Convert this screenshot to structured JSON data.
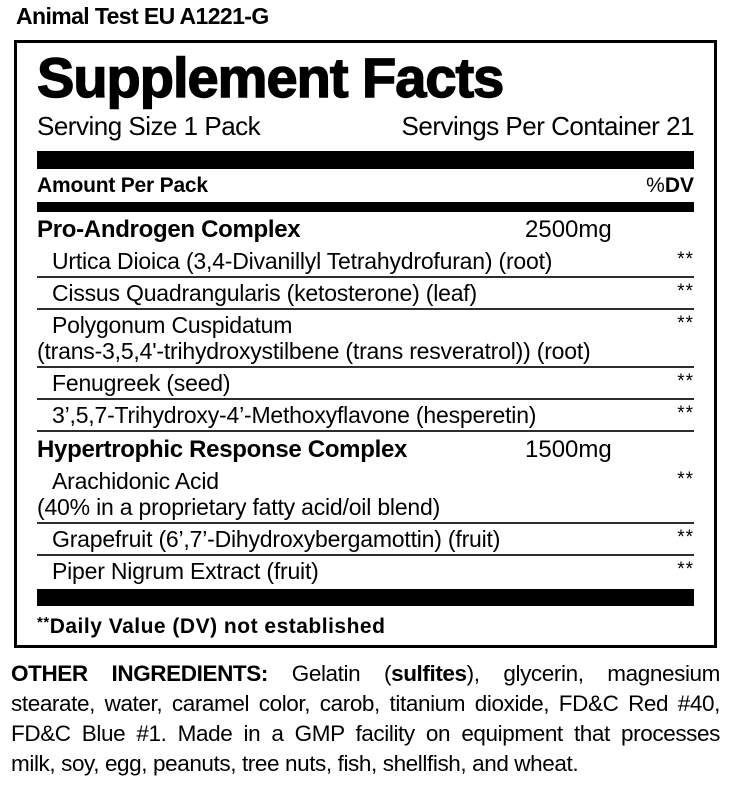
{
  "colors": {
    "background": "#ffffff",
    "ink": "#000000",
    "separator": "#2e2e2e"
  },
  "header": {
    "product_title": "Animal Test EU A1221-G"
  },
  "panel": {
    "title": "Supplement Facts",
    "serving_size": "Serving Size 1 Pack",
    "servings_per_container": "Servings Per Container 21",
    "column_header": {
      "amount_label": "Amount Per Pack",
      "percent_sign": "%",
      "dv_label": "DV"
    },
    "rows": [
      {
        "type": "section",
        "name": "Pro-Androgen Complex",
        "amount": "2500mg",
        "separator_below": false
      },
      {
        "type": "ingredient",
        "lines": [
          "Urtica Dioica (3,4-Divanillyl Tetrahydrofuran) (root)"
        ],
        "dv": "**",
        "separator_below": true
      },
      {
        "type": "ingredient",
        "lines": [
          "Cissus Quadrangularis (ketosterone) (leaf)"
        ],
        "dv": "**",
        "separator_below": true
      },
      {
        "type": "ingredient",
        "lines": [
          "Polygonum Cuspidatum",
          "(trans-3,5,4'-trihydroxystilbene (trans resveratrol)) (root)"
        ],
        "dv": "**",
        "separator_below": true
      },
      {
        "type": "ingredient",
        "lines": [
          "Fenugreek (seed)"
        ],
        "dv": "**",
        "separator_below": true
      },
      {
        "type": "ingredient",
        "lines": [
          "3’,5,7-Trihydroxy-4’-Methoxyflavone (hesperetin)"
        ],
        "dv": "**",
        "separator_below": true
      },
      {
        "type": "section",
        "name": "Hypertrophic Response Complex",
        "amount": "1500mg",
        "separator_below": false
      },
      {
        "type": "ingredient",
        "lines": [
          "Arachidonic Acid",
          "(40% in a proprietary fatty acid/oil blend)"
        ],
        "dv": "**",
        "separator_below": true
      },
      {
        "type": "ingredient",
        "lines": [
          "Grapefruit (6’,7’-Dihydroxybergamottin) (fruit)"
        ],
        "dv": "**",
        "separator_below": true
      },
      {
        "type": "ingredient",
        "lines": [
          "Piper Nigrum Extract (fruit)"
        ],
        "dv": "**",
        "separator_below": false
      }
    ],
    "footnote": {
      "marker": "**",
      "text": "Daily Value (DV) not established"
    }
  },
  "other_ingredients": {
    "lines": [
      [
        {
          "text": "OTHER INGREDIENTS:",
          "bold": true
        },
        {
          "text": " Gelatin (",
          "bold": false
        },
        {
          "text": "sulfites",
          "bold": true
        },
        {
          "text": "), glycerin, magnesium",
          "bold": false
        }
      ],
      [
        {
          "text": "stearate, water, caramel color, carob, titanium dioxide, FD&C Red #40,",
          "bold": false
        }
      ],
      [
        {
          "text": "FD&C Blue #1. Made in a GMP facility on equipment that processes",
          "bold": false
        }
      ],
      [
        {
          "text": "milk, soy, egg, peanuts, tree nuts, fish, shellfish, and wheat.",
          "bold": false
        }
      ]
    ]
  }
}
